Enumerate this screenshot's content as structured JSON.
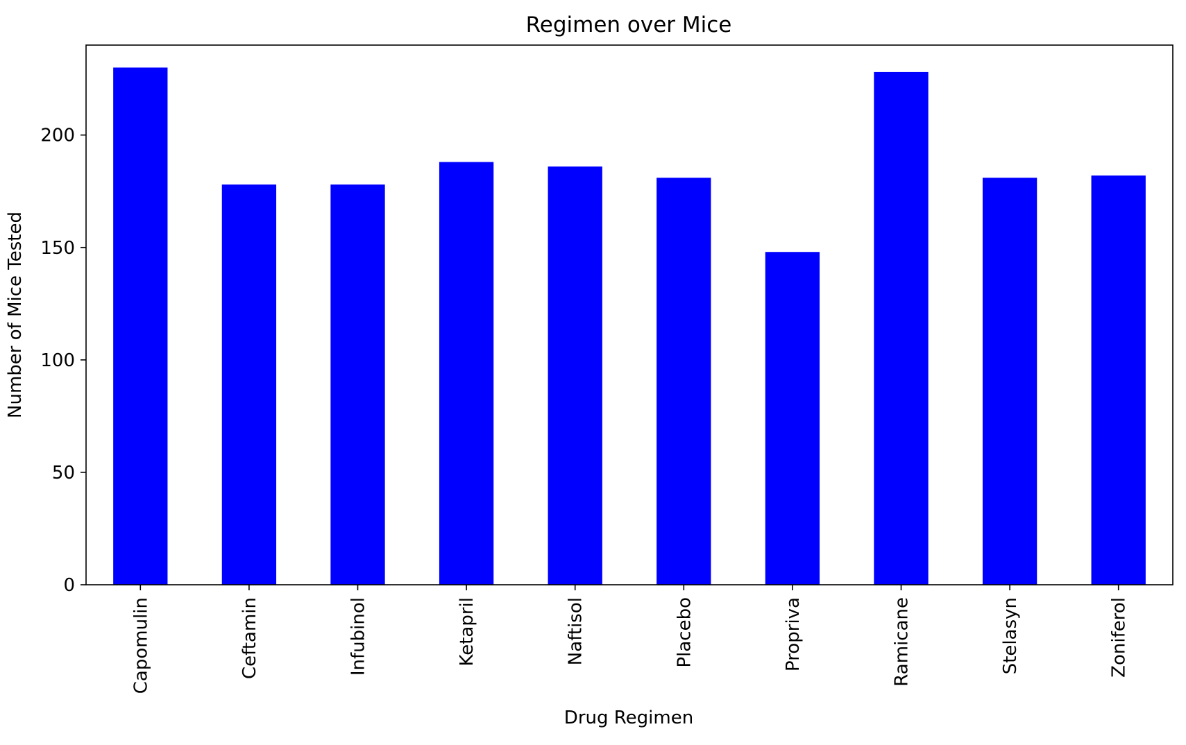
{
  "chart_data": {
    "type": "bar",
    "title": "Regimen over Mice",
    "xlabel": "Drug Regimen",
    "ylabel": "Number of Mice Tested",
    "categories": [
      "Capomulin",
      "Ceftamin",
      "Infubinol",
      "Ketapril",
      "Naftisol",
      "Placebo",
      "Propriva",
      "Ramicane",
      "Stelasyn",
      "Zoniferol"
    ],
    "values": [
      230,
      178,
      178,
      188,
      186,
      181,
      148,
      228,
      181,
      182
    ],
    "yticks": [
      "0",
      "50",
      "100",
      "150",
      "200"
    ],
    "ylim": [
      0,
      240
    ],
    "grid": false,
    "bar_color": "#0000ff"
  }
}
